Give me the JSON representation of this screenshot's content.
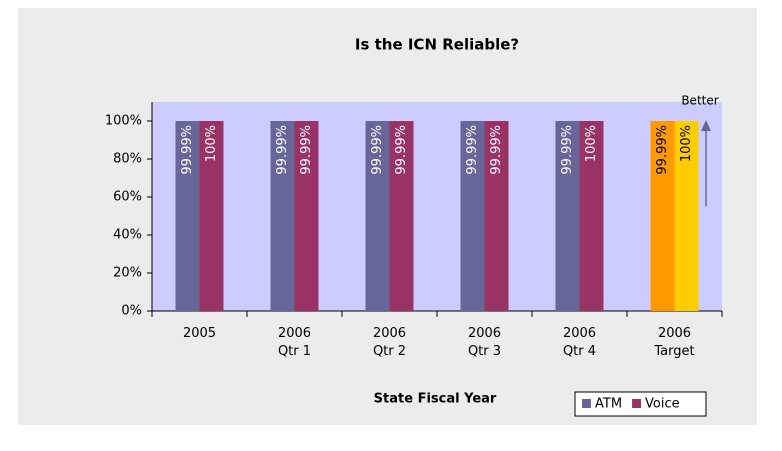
{
  "chart_data": {
    "type": "bar",
    "title": "Is the ICN Reliable?",
    "x_label": "State Fiscal Year",
    "categories": [
      "2005",
      "2006\nQtr 1",
      "2006\nQtr 2",
      "2006\nQtr 3",
      "2006\nQtr 4",
      "2006\nTarget"
    ],
    "series": [
      {
        "name": "ATM",
        "color": "#666699",
        "colors": [
          "#666699",
          "#666699",
          "#666699",
          "#666699",
          "#666699",
          "#ff9900"
        ],
        "values": [
          99.99,
          99.99,
          99.99,
          99.99,
          99.99,
          99.99
        ],
        "value_labels": [
          "99.99%",
          "99.99%",
          "99.99%",
          "99.99%",
          "99.99%",
          "99.99%"
        ]
      },
      {
        "name": "Voice",
        "color": "#993366",
        "colors": [
          "#993366",
          "#993366",
          "#993366",
          "#993366",
          "#993366",
          "#ffcc00"
        ],
        "values": [
          100,
          99.99,
          99.99,
          99.99,
          100,
          100
        ],
        "value_labels": [
          "100%",
          "99.99%",
          "99.99%",
          "99.99%",
          "100%",
          "100%"
        ]
      }
    ],
    "ylim": [
      0,
      110
    ],
    "yticks": [
      {
        "value": 0,
        "label": "0%"
      },
      {
        "value": 20,
        "label": "20%"
      },
      {
        "value": 40,
        "label": "40%"
      },
      {
        "value": 60,
        "label": "60%"
      },
      {
        "value": 80,
        "label": "80%"
      },
      {
        "value": 100,
        "label": "100%"
      }
    ],
    "annotation": "Better",
    "legend": "bottom-right"
  }
}
